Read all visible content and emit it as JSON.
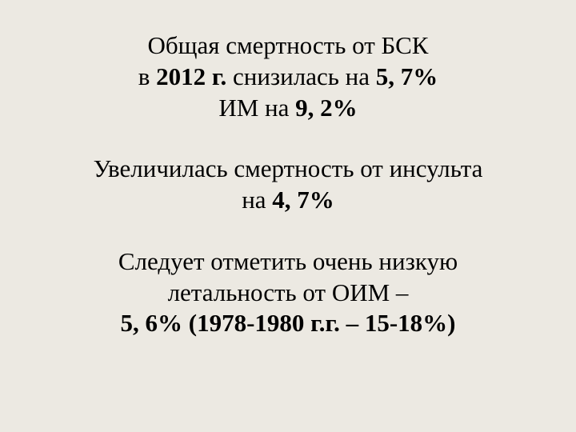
{
  "background_color": "#ece9e2",
  "text_color": "#000000",
  "font_family": "Times New Roman",
  "font_size_pt": 24,
  "blocks": {
    "b1": {
      "l1_pre": "Общая смертность от БСК",
      "l2_pre": "в ",
      "l2_year": "2012 г.",
      "l2_mid": " снизилась на ",
      "l2_val": "5, 7%",
      "l3_pre": "ИМ на ",
      "l3_val": "9, 2%"
    },
    "b2": {
      "l1": "Увеличилась смертность от инсульта",
      "l2_pre": "на ",
      "l2_val": "4, 7%"
    },
    "b3": {
      "l1": "Следует отметить очень низкую",
      "l2": "летальность от ОИМ –",
      "l3": "5, 6% (1978-1980 г.г. – 15-18%)"
    }
  }
}
